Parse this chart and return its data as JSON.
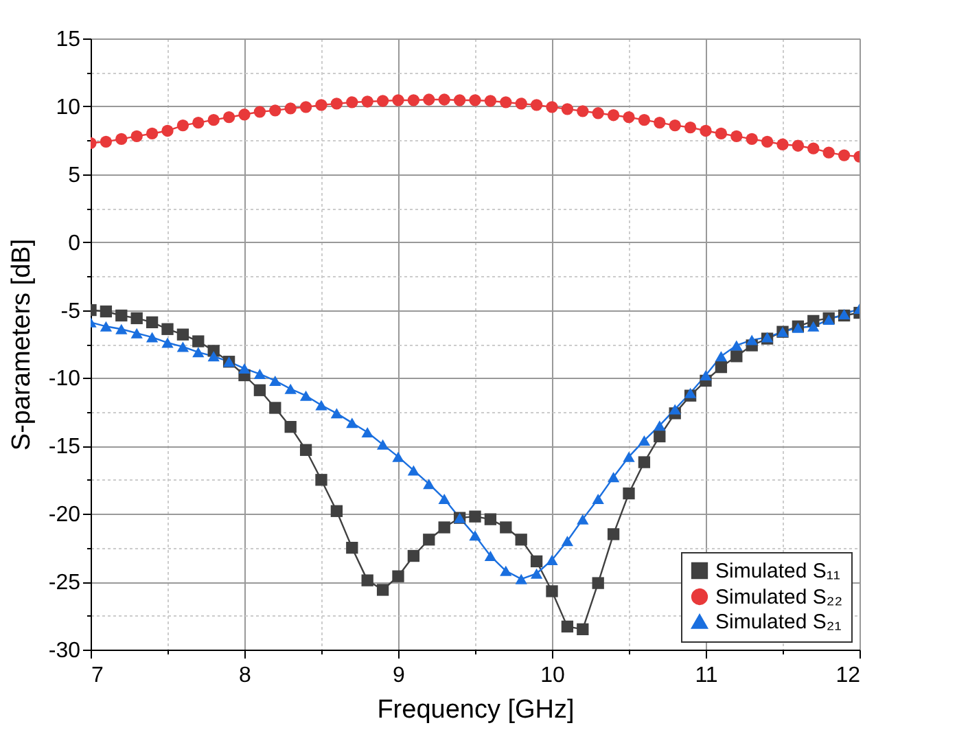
{
  "chart_data": {
    "type": "line",
    "xlabel": "Frequency [GHz]",
    "ylabel": "S-parameters [dB]",
    "x": [
      7.0,
      7.1,
      7.2,
      7.3,
      7.4,
      7.5,
      7.6,
      7.7,
      7.8,
      7.9,
      8.0,
      8.1,
      8.2,
      8.3,
      8.4,
      8.5,
      8.6,
      8.7,
      8.8,
      8.9,
      9.0,
      9.1,
      9.2,
      9.3,
      9.4,
      9.5,
      9.6,
      9.7,
      9.8,
      9.9,
      10.0,
      10.1,
      10.2,
      10.3,
      10.4,
      10.5,
      10.6,
      10.7,
      10.8,
      10.9,
      11.0,
      11.1,
      11.2,
      11.3,
      11.4,
      11.5,
      11.6,
      11.7,
      11.8,
      11.9,
      12.0
    ],
    "series": [
      {
        "name": "Simulated S₁₁",
        "color": "#404040",
        "marker": "square",
        "values": [
          -5.0,
          -5.1,
          -5.4,
          -5.6,
          -5.9,
          -6.4,
          -6.8,
          -7.3,
          -8.0,
          -8.8,
          -9.8,
          -10.9,
          -12.2,
          -13.6,
          -15.3,
          -17.5,
          -19.8,
          -22.5,
          -24.9,
          -25.6,
          -24.6,
          -23.1,
          -21.9,
          -21.0,
          -20.3,
          -20.2,
          -20.4,
          -21.0,
          -21.9,
          -23.5,
          -25.7,
          -28.3,
          -28.5,
          -25.1,
          -21.5,
          -18.5,
          -16.2,
          -14.3,
          -12.6,
          -11.3,
          -10.2,
          -9.2,
          -8.4,
          -7.6,
          -7.1,
          -6.6,
          -6.2,
          -5.8,
          -5.6,
          -5.4,
          -5.2
        ]
      },
      {
        "name": "Simulated S₂₂",
        "color": "#e8393a",
        "marker": "circle",
        "values": [
          7.3,
          7.4,
          7.6,
          7.8,
          8.0,
          8.2,
          8.6,
          8.8,
          9.0,
          9.2,
          9.4,
          9.6,
          9.7,
          9.85,
          9.95,
          10.1,
          10.2,
          10.3,
          10.35,
          10.4,
          10.45,
          10.45,
          10.5,
          10.5,
          10.45,
          10.45,
          10.4,
          10.3,
          10.2,
          10.1,
          9.95,
          9.8,
          9.65,
          9.5,
          9.35,
          9.2,
          9.0,
          8.8,
          8.6,
          8.45,
          8.2,
          8.0,
          7.8,
          7.6,
          7.4,
          7.2,
          7.1,
          6.9,
          6.6,
          6.4,
          6.3
        ]
      },
      {
        "name": "Simulated S₂₁",
        "color": "#1a6fdf",
        "marker": "triangle",
        "values": [
          -5.9,
          -6.2,
          -6.4,
          -6.7,
          -7.0,
          -7.4,
          -7.7,
          -8.1,
          -8.4,
          -8.8,
          -9.3,
          -9.7,
          -10.2,
          -10.8,
          -11.3,
          -12.0,
          -12.6,
          -13.3,
          -14.0,
          -14.9,
          -15.8,
          -16.8,
          -17.8,
          -18.9,
          -20.3,
          -21.6,
          -23.1,
          -24.2,
          -24.8,
          -24.4,
          -23.4,
          -22.0,
          -20.4,
          -18.9,
          -17.3,
          -15.8,
          -14.6,
          -13.5,
          -12.3,
          -11.1,
          -9.8,
          -8.4,
          -7.6,
          -7.2,
          -7.0,
          -6.6,
          -6.3,
          -6.2,
          -5.7,
          -5.3,
          -4.9
        ]
      }
    ],
    "xlim": [
      7,
      12
    ],
    "xticks": [
      7,
      {
        "value": 7.5,
        "label": null
      },
      8,
      {
        "value": 8.5,
        "label": null
      },
      9,
      {
        "value": 9.5,
        "label": null
      },
      10,
      {
        "value": 10.5,
        "label": null
      },
      11,
      {
        "value": 11.5,
        "label": null
      },
      12
    ],
    "ylim": [
      -30,
      15
    ],
    "yticks": [
      -30,
      {
        "value": -27.5,
        "label": null
      },
      -25,
      {
        "value": -22.5,
        "label": null
      },
      -20,
      {
        "value": -17.5,
        "label": null
      },
      -15,
      {
        "value": -12.5,
        "label": null
      },
      -10,
      {
        "value": -7.5,
        "label": null
      },
      -5,
      {
        "value": -2.5,
        "label": null
      },
      0,
      {
        "value": 2.5,
        "label": null
      },
      5,
      {
        "value": 7.5,
        "label": null
      },
      10,
      {
        "value": 12.5,
        "label": null
      },
      15
    ],
    "grid": true,
    "legend": "bottom right",
    "line_style": "solid"
  }
}
